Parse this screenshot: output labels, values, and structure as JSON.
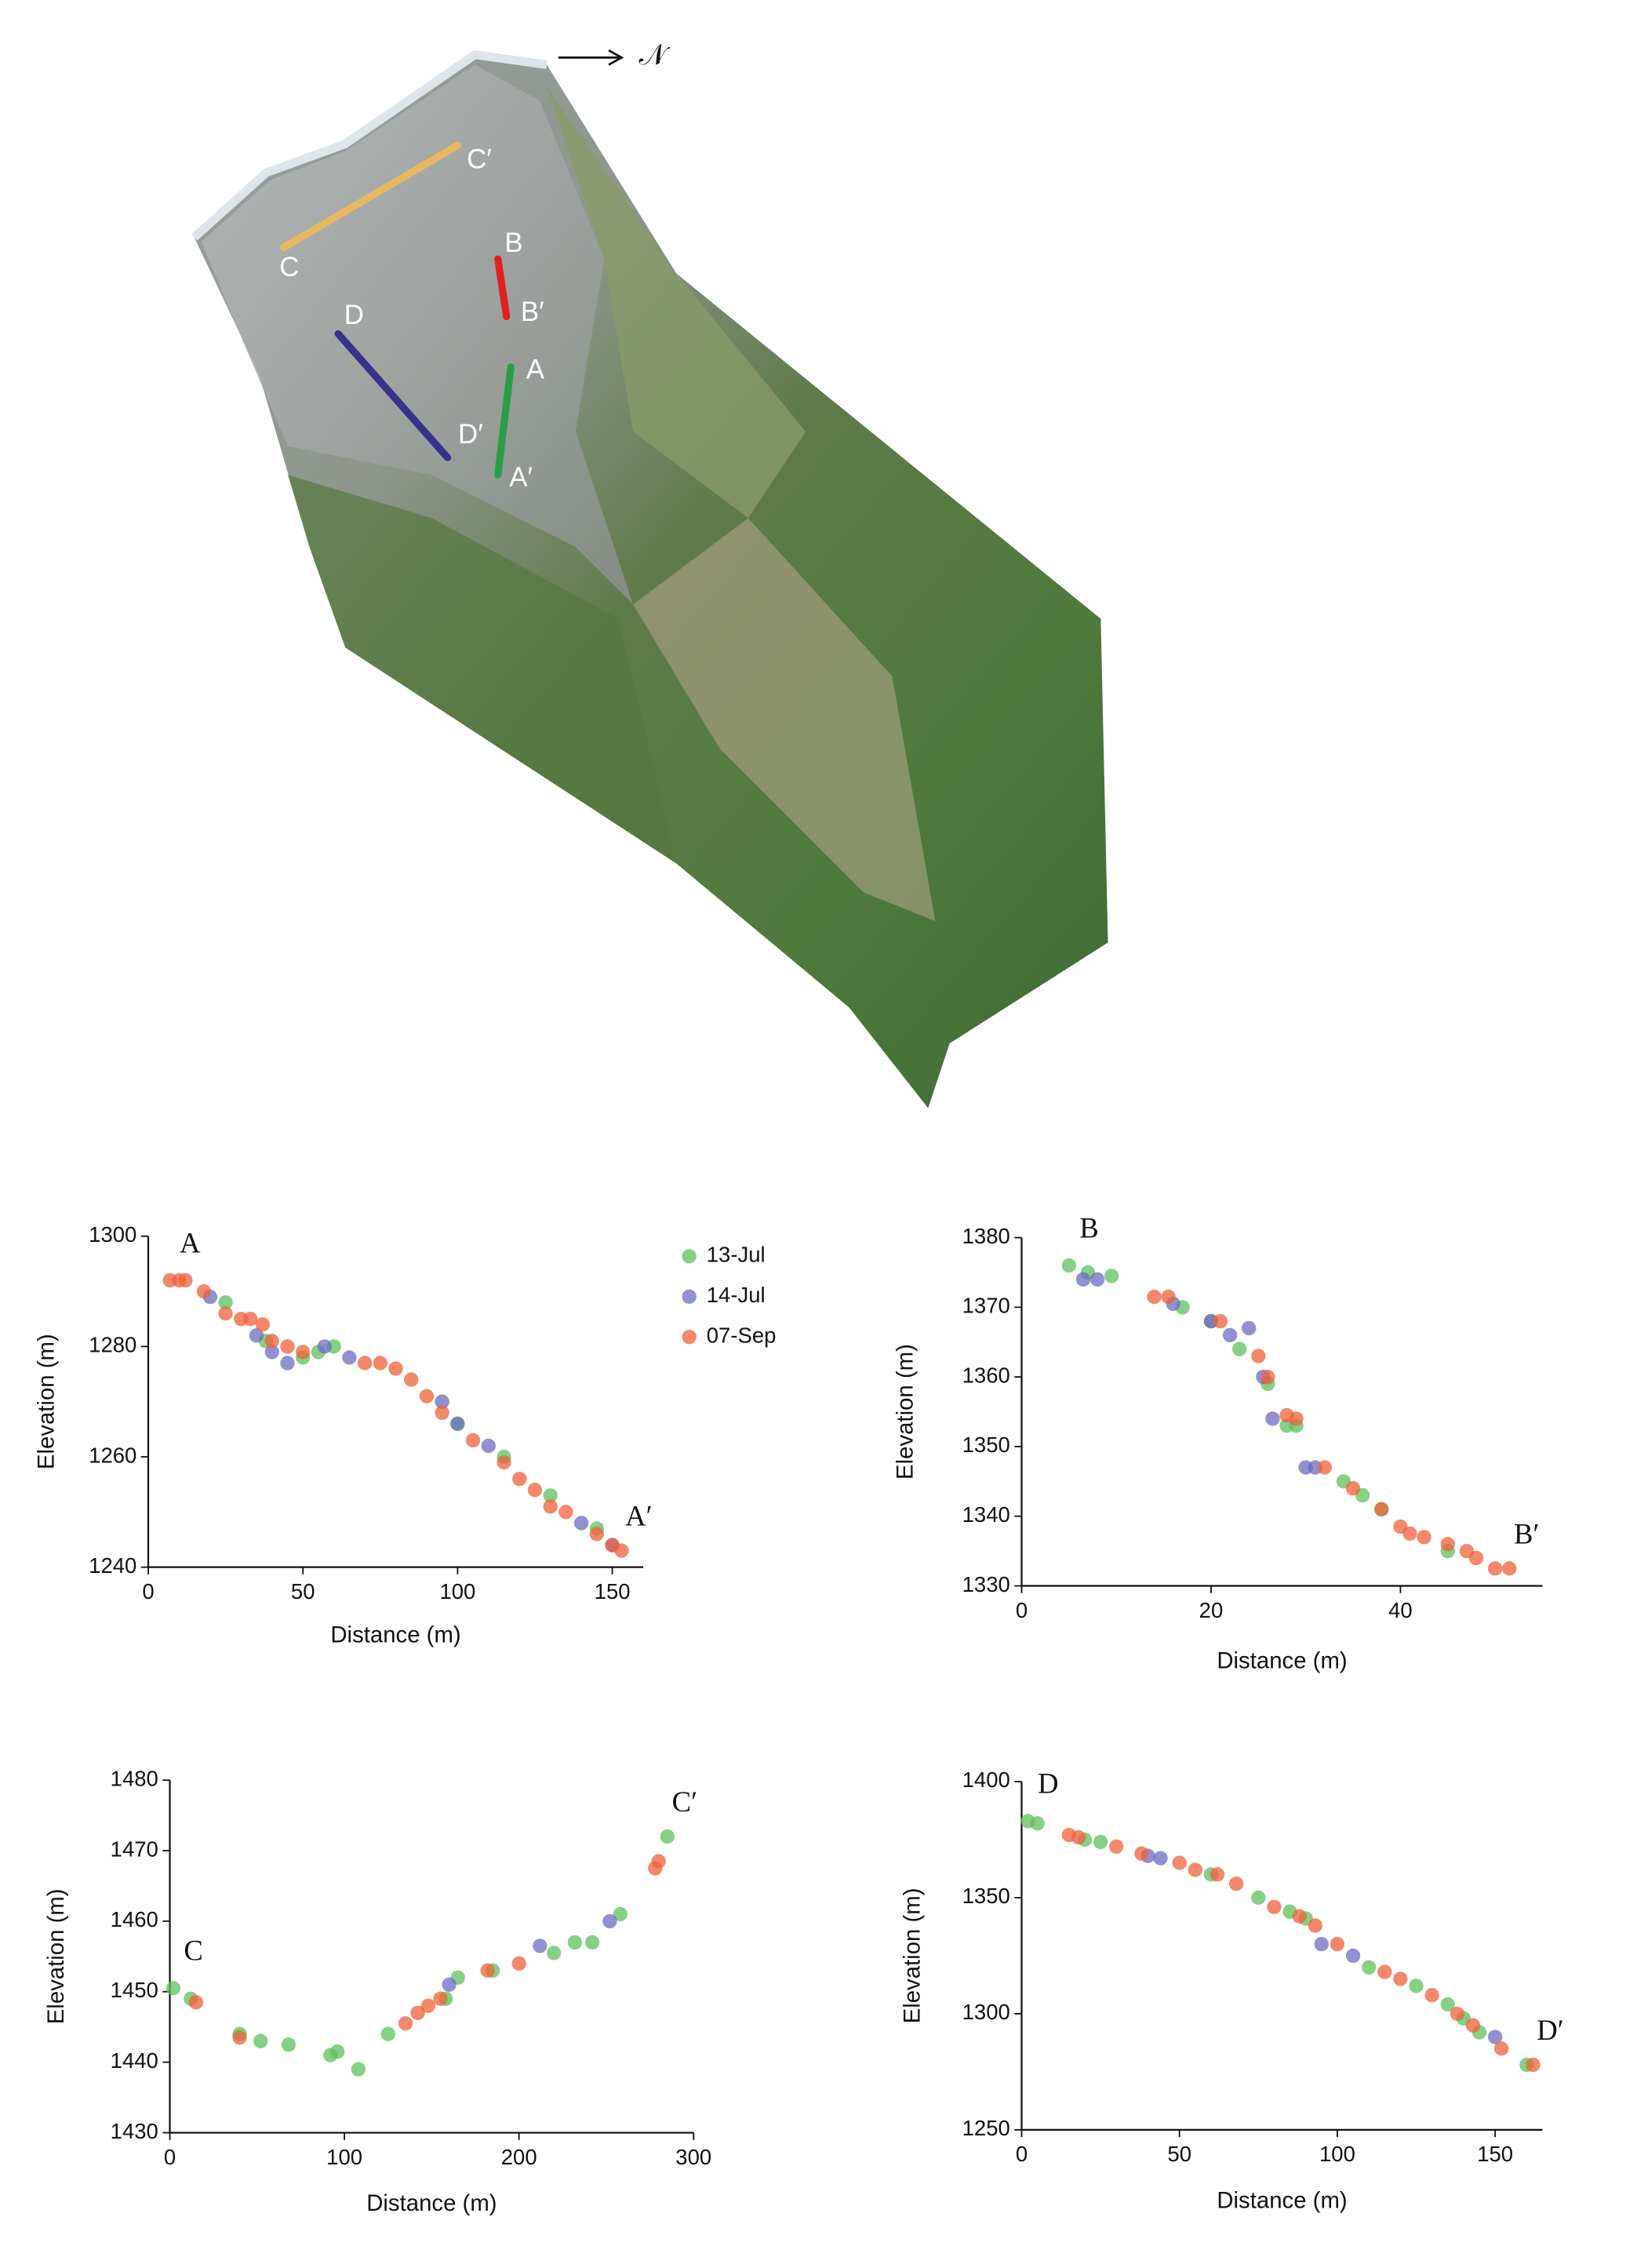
{
  "map": {
    "north": "𝒩",
    "profiles": [
      {
        "start": "A",
        "end": "A′"
      },
      {
        "start": "B",
        "end": "B′"
      },
      {
        "start": "C",
        "end": "C′"
      },
      {
        "start": "D",
        "end": "D′"
      }
    ]
  },
  "chart_data": [
    {
      "type": "scatter",
      "xlabel": "Distance (m)",
      "ylabel": "Elevation (m)",
      "legend": true,
      "annotations": {
        "start": "A",
        "end": "A′"
      },
      "xlim": [
        0,
        160
      ],
      "xticks": [
        0,
        50,
        100,
        150
      ],
      "ylim": [
        1240,
        1300
      ],
      "yticks": [
        1240,
        1260,
        1280,
        1300
      ],
      "series": [
        {
          "name": "13-Jul",
          "color": "#5cc05c",
          "x": [
            25,
            38,
            50,
            55,
            60,
            100,
            115,
            130,
            145
          ],
          "values": [
            1288,
            1281,
            1278,
            1279,
            1280,
            1266,
            1260,
            1253,
            1247
          ]
        },
        {
          "name": "14-Jul",
          "color": "#6b6bc4",
          "x": [
            20,
            35,
            40,
            45,
            57,
            65,
            95,
            100,
            110,
            140,
            150
          ],
          "values": [
            1289,
            1282,
            1279,
            1277,
            1280,
            1278,
            1270,
            1266,
            1262,
            1248,
            1244
          ]
        },
        {
          "name": "07-Sep",
          "color": "#f0603a",
          "x": [
            7,
            10,
            12,
            18,
            25,
            30,
            33,
            37,
            40,
            45,
            50,
            70,
            75,
            80,
            85,
            90,
            95,
            105,
            115,
            120,
            125,
            130,
            135,
            145,
            150,
            153
          ],
          "values": [
            1292,
            1292,
            1292,
            1290,
            1286,
            1285,
            1285,
            1284,
            1281,
            1280,
            1279,
            1277,
            1277,
            1276,
            1274,
            1271,
            1268,
            1263,
            1259,
            1256,
            1254,
            1251,
            1250,
            1246,
            1244,
            1243
          ]
        }
      ]
    },
    {
      "type": "scatter",
      "xlabel": "Distance (m)",
      "ylabel": "Elevation (m)",
      "legend": false,
      "annotations": {
        "start": "B",
        "end": "B′"
      },
      "xlim": [
        0,
        55
      ],
      "xticks": [
        0,
        20,
        40
      ],
      "ylim": [
        1330,
        1380
      ],
      "yticks": [
        1330,
        1340,
        1350,
        1360,
        1370,
        1380
      ],
      "series": [
        {
          "color": "#5cc05c",
          "x": [
            5,
            7,
            9.5,
            17,
            20,
            23,
            26,
            28,
            29,
            34,
            36,
            38,
            45
          ],
          "values": [
            1376,
            1375,
            1374.5,
            1370,
            1368,
            1364,
            1359,
            1353,
            1353,
            1345,
            1343,
            1341,
            1335
          ]
        },
        {
          "color": "#6b6bc4",
          "x": [
            6.5,
            8,
            16,
            20,
            22,
            24,
            25.5,
            26.5,
            30,
            31
          ],
          "values": [
            1374,
            1374,
            1370.5,
            1368,
            1366,
            1367,
            1360,
            1354,
            1347,
            1347
          ]
        },
        {
          "color": "#f0603a",
          "x": [
            14,
            15.5,
            21,
            25,
            26,
            28,
            29,
            32,
            35,
            38,
            40,
            41,
            42.5,
            45,
            47,
            48,
            50,
            51.5
          ],
          "values": [
            1371.5,
            1371.5,
            1368,
            1363,
            1360,
            1354.5,
            1354,
            1347,
            1344,
            1341,
            1338.5,
            1337.5,
            1337,
            1336,
            1335,
            1334,
            1332.5,
            1332.5
          ]
        }
      ]
    },
    {
      "type": "scatter",
      "xlabel": "Distance (m)",
      "ylabel": "Elevation (m)",
      "legend": false,
      "annotations": {
        "start": "C",
        "end": "C′"
      },
      "xlim": [
        0,
        300
      ],
      "xticks": [
        0,
        100,
        200,
        300
      ],
      "ylim": [
        1430,
        1480
      ],
      "yticks": [
        1430,
        1440,
        1450,
        1460,
        1470,
        1480
      ],
      "series": [
        {
          "color": "#5cc05c",
          "x": [
            2,
            12,
            40,
            52,
            68,
            92,
            96,
            108,
            125,
            158,
            165,
            185,
            220,
            232,
            242,
            258,
            285
          ],
          "values": [
            1450.5,
            1449,
            1444,
            1443,
            1442.5,
            1441,
            1441.5,
            1439,
            1444,
            1449,
            1452,
            1453,
            1455.5,
            1457,
            1457,
            1461,
            1472
          ]
        },
        {
          "color": "#6b6bc4",
          "x": [
            160,
            212,
            252
          ],
          "values": [
            1451,
            1456.5,
            1460
          ]
        },
        {
          "color": "#f0603a",
          "x": [
            15,
            40,
            135,
            142,
            148,
            155,
            182,
            200,
            278,
            280
          ],
          "values": [
            1448.5,
            1443.5,
            1445.5,
            1447,
            1448,
            1449,
            1453,
            1454,
            1467.5,
            1468.5
          ]
        }
      ]
    },
    {
      "type": "scatter",
      "xlabel": "Distance (m)",
      "ylabel": "Elevation (m)",
      "legend": false,
      "annotations": {
        "start": "D",
        "end": "D′"
      },
      "xlim": [
        0,
        165
      ],
      "xticks": [
        0,
        50,
        100,
        150
      ],
      "ylim": [
        1250,
        1400
      ],
      "yticks": [
        1250,
        1300,
        1350,
        1400
      ],
      "series": [
        {
          "color": "#5cc05c",
          "x": [
            2,
            5,
            20,
            25,
            60,
            75,
            85,
            90,
            110,
            125,
            135,
            140,
            145,
            160
          ],
          "values": [
            1383,
            1382,
            1375,
            1374,
            1360,
            1350,
            1344,
            1341,
            1320,
            1312,
            1304,
            1298,
            1292,
            1278
          ]
        },
        {
          "color": "#6b6bc4",
          "x": [
            40,
            44,
            95,
            105,
            150
          ],
          "values": [
            1368,
            1367,
            1330,
            1325,
            1290
          ]
        },
        {
          "color": "#f0603a",
          "x": [
            15,
            18,
            30,
            38,
            50,
            55,
            62,
            68,
            80,
            88,
            93,
            100,
            115,
            120,
            130,
            138,
            143,
            152,
            162
          ],
          "values": [
            1377,
            1376,
            1372,
            1369,
            1365,
            1362,
            1360,
            1356,
            1346,
            1342,
            1338,
            1330,
            1318,
            1315,
            1308,
            1300,
            1295,
            1285,
            1278
          ]
        }
      ]
    }
  ]
}
